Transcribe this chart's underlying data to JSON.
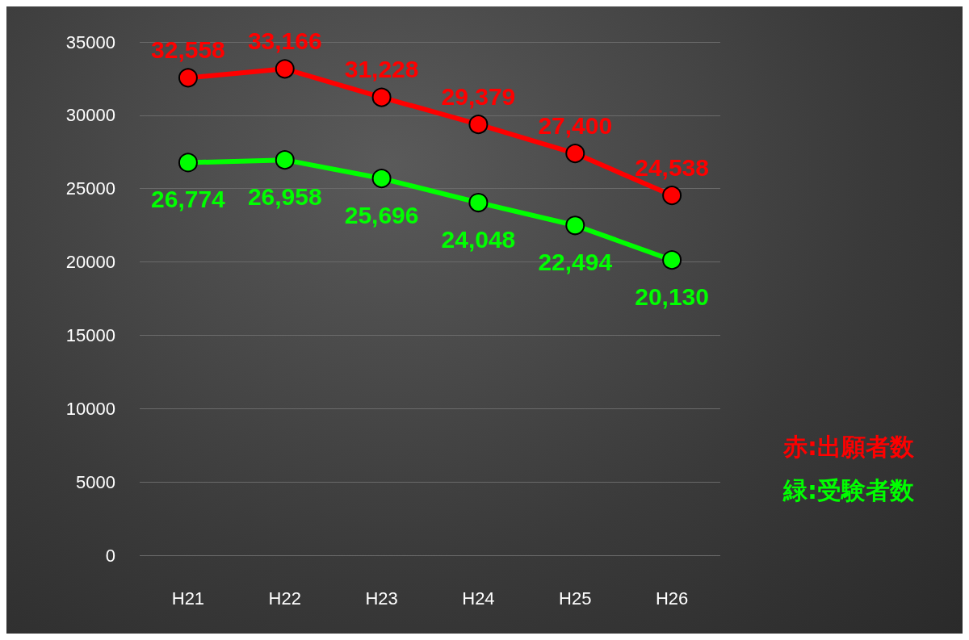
{
  "chart_data": {
    "type": "line",
    "categories": [
      "H21",
      "H22",
      "H23",
      "H24",
      "H25",
      "H26"
    ],
    "series": [
      {
        "name": "赤:出願者数",
        "color": "#ff0000",
        "values": [
          32558,
          33166,
          31228,
          29379,
          27400,
          24538
        ],
        "value_labels": [
          "32,558",
          "33,166",
          "31,228",
          "29,379",
          "27,400",
          "24,538"
        ]
      },
      {
        "name": "緑:受験者数",
        "color": "#00ff00",
        "values": [
          26774,
          26958,
          25696,
          24048,
          22494,
          20130
        ],
        "value_labels": [
          "26,774",
          "26,958",
          "25,696",
          "24,048",
          "22,494",
          "20,130"
        ]
      }
    ],
    "ylim": [
      0,
      35000
    ],
    "yticks": [
      0,
      5000,
      10000,
      15000,
      20000,
      25000,
      30000,
      35000
    ],
    "grid": "y",
    "legend": "right",
    "marker": "circle",
    "line_style": "solid"
  }
}
